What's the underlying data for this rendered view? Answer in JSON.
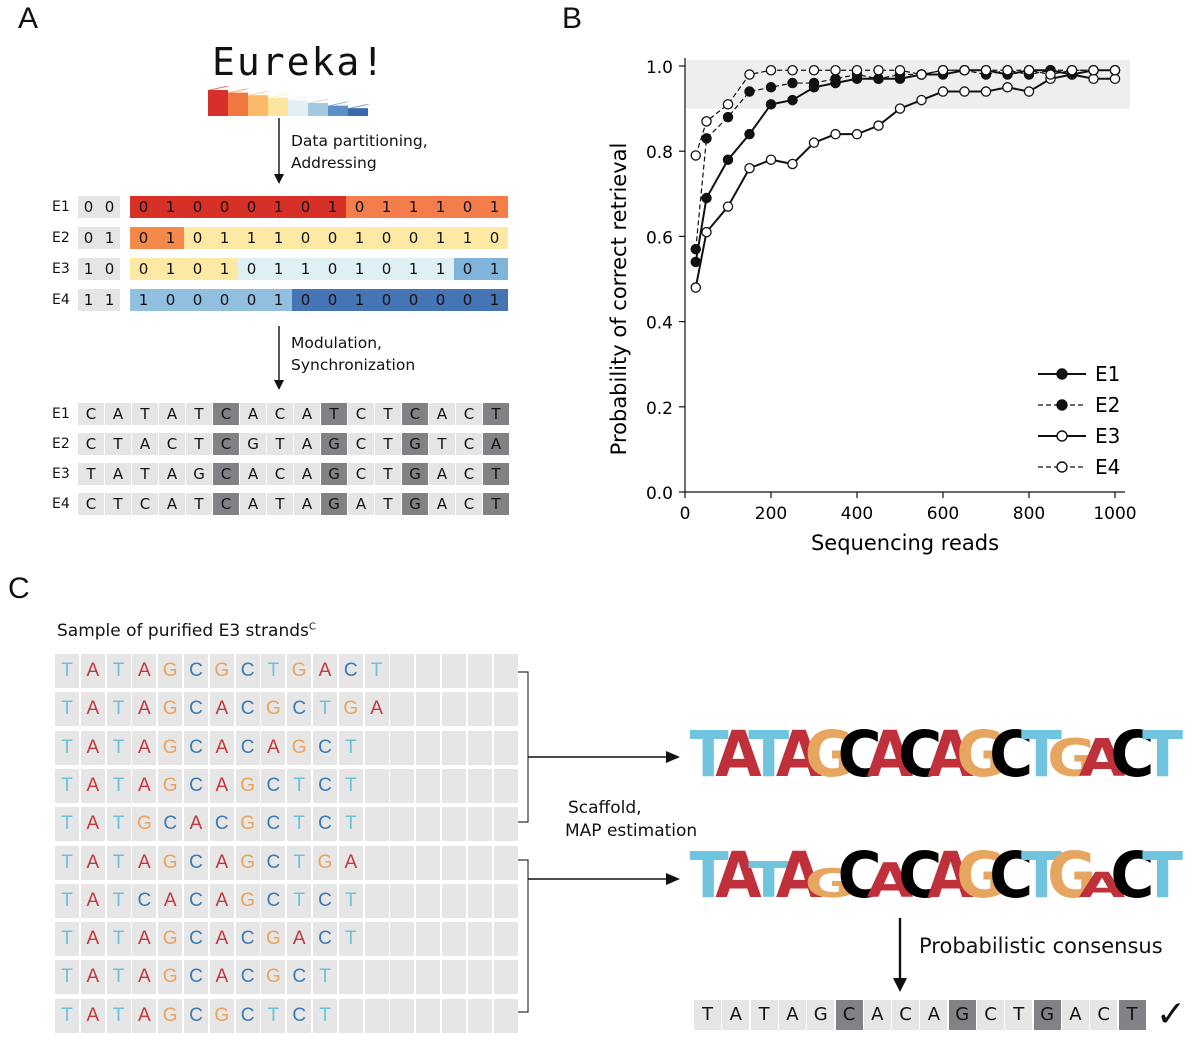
{
  "panels": {
    "a": "A",
    "b": "B",
    "c": "C"
  },
  "panel_a": {
    "title_word": "Eureka!",
    "step1_line1": "Data partitioning,",
    "step1_line2": "Addressing",
    "step2_line1": "Modulation,",
    "step2_line2": "Synchronization",
    "binary_rows": [
      {
        "label": "E1",
        "addr": "00",
        "bits": "01000101011101"
      },
      {
        "label": "E2",
        "addr": "01",
        "bits": "01011100100110"
      },
      {
        "label": "E3",
        "addr": "10",
        "bits": "01010110101101"
      },
      {
        "label": "E4",
        "addr": "11",
        "bits": "10000100100001"
      }
    ],
    "dna_rows": [
      {
        "label": "E1",
        "seq": "CATATCACATCTCACT"
      },
      {
        "label": "E2",
        "seq": "CTACTCGTAGCTGTCA"
      },
      {
        "label": "E3",
        "seq": "TATAGCACAGCTGACT"
      },
      {
        "label": "E4",
        "seq": "CTCATCATAGATGACT"
      }
    ],
    "colors": {
      "gray_cell": "#e5e5e5",
      "dark_cell": "#808285",
      "strip": [
        "#d7302b",
        "#f0773f",
        "#fcb96a",
        "#fde5a0",
        "#e1f0f2",
        "#a4c9df",
        "#5b90c7",
        "#3868ac"
      ]
    }
  },
  "chart_data": {
    "type": "line",
    "xlabel": "Sequencing reads",
    "ylabel": "Probability of correct retrieval",
    "xlim": [
      0,
      1000
    ],
    "ylim": [
      0,
      1.0
    ],
    "xticks": [
      "0",
      "200",
      "400",
      "600",
      "800",
      "1000"
    ],
    "yticks": [
      "0.0",
      "0.2",
      "0.4",
      "0.6",
      "0.8",
      "1.0"
    ],
    "shaded_band": [
      0.9,
      1.0
    ],
    "legend_position": "bottom-right",
    "x": [
      25,
      50,
      100,
      150,
      200,
      250,
      300,
      350,
      400,
      450,
      500,
      550,
      600,
      650,
      700,
      750,
      800,
      850,
      900,
      950,
      1000
    ],
    "series": [
      {
        "name": "E1",
        "style": "solid",
        "marker": "filled",
        "values": [
          0.54,
          0.69,
          0.78,
          0.84,
          0.91,
          0.92,
          0.95,
          0.96,
          0.97,
          0.97,
          0.97,
          0.98,
          0.98,
          0.99,
          0.99,
          0.98,
          0.99,
          0.99,
          0.98,
          0.99,
          0.99
        ]
      },
      {
        "name": "E2",
        "style": "dashed",
        "marker": "filled",
        "values": [
          0.57,
          0.83,
          0.88,
          0.94,
          0.95,
          0.96,
          0.96,
          0.97,
          0.98,
          0.97,
          0.98,
          0.98,
          0.99,
          0.99,
          0.98,
          0.99,
          0.98,
          0.99,
          0.99,
          0.99,
          0.99
        ]
      },
      {
        "name": "E3",
        "style": "solid",
        "marker": "open",
        "values": [
          0.48,
          0.61,
          0.67,
          0.76,
          0.78,
          0.77,
          0.82,
          0.84,
          0.84,
          0.86,
          0.9,
          0.92,
          0.94,
          0.94,
          0.94,
          0.95,
          0.94,
          0.97,
          0.98,
          0.97,
          0.97
        ]
      },
      {
        "name": "E4",
        "style": "dashed",
        "marker": "open",
        "values": [
          0.79,
          0.87,
          0.91,
          0.98,
          0.99,
          0.99,
          0.99,
          0.99,
          0.99,
          0.99,
          0.99,
          0.98,
          0.99,
          0.99,
          0.99,
          0.99,
          0.99,
          0.98,
          0.99,
          0.99,
          0.99
        ]
      }
    ]
  },
  "panel_c": {
    "sample_title": "Sample of purified E3 strands",
    "sample_superscript": "C",
    "strands": [
      "TATAGCGCTGACT",
      "TATAGCACGCTGA",
      "TATAGCACAGCT",
      "TATAGCAGCTCT",
      "TATGCACGCTCT",
      "TATAGCAGCTGA",
      "TATCACAGCTCT",
      "TATAGCACGACT",
      "TATAGCACGCT",
      "TATAGCGCTCT"
    ],
    "scaffold_line1": "Scaffold,",
    "scaffold_line2": "MAP estimation",
    "logo1": "TATAGCACAGCTGACT",
    "logo2": "TATAGCACAGCTGACT",
    "probabilistic_label": "Probabilistic consensus",
    "consensus": "TATAGCACAGCTGACT",
    "checkmark": "✓",
    "base_colors": {
      "A": "#c8353b",
      "C": "#3b7bb4",
      "G": "#eaa45c",
      "T": "#6cc1db"
    },
    "logo_colors": {
      "A": "#c0303a",
      "C": "#000000",
      "G": "#e6a660",
      "T": "#70c4dd"
    }
  }
}
